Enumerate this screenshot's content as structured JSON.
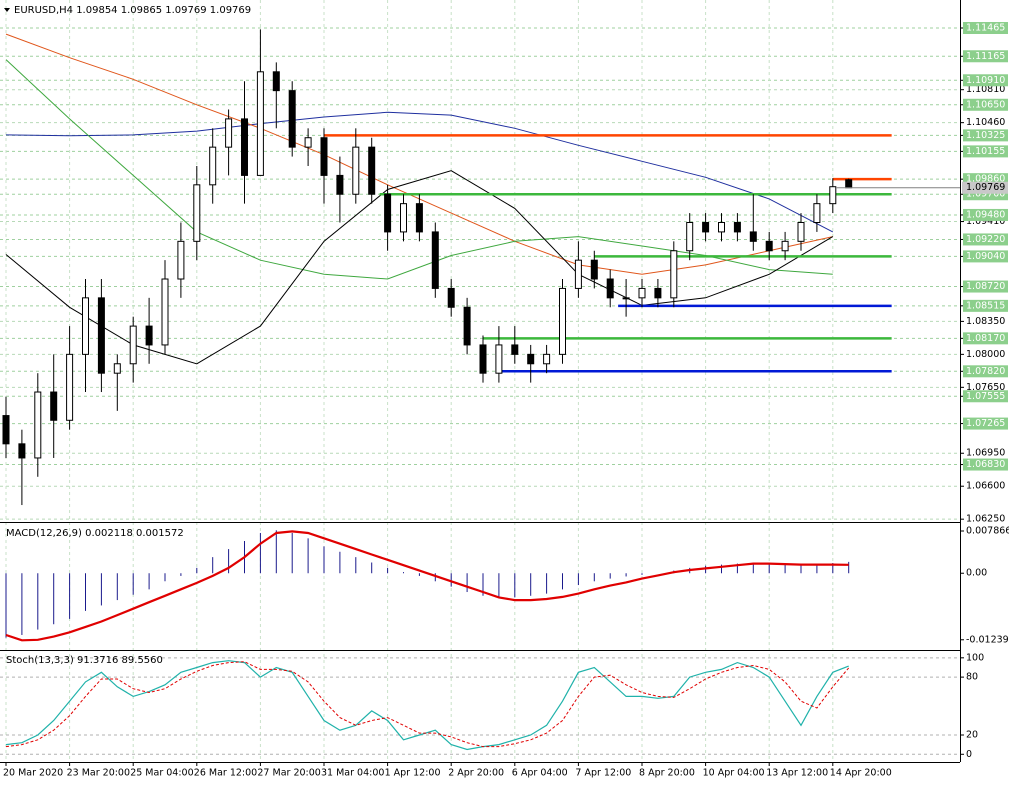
{
  "chart_data": [
    {
      "type": "candlestick",
      "title": "EURUSD,H4  1.09854 1.09865 1.09769 1.09769",
      "categories": [
        "20 Mar 2020",
        null,
        null,
        null,
        "23 Mar 20:00",
        null,
        null,
        null,
        "25 Mar 04:00",
        null,
        null,
        null,
        "26 Mar 12:00",
        null,
        null,
        null,
        "27 Mar 20:00",
        null,
        null,
        null,
        "31 Mar 04:00",
        null,
        null,
        null,
        "1 Apr 12:00",
        null,
        null,
        null,
        "2 Apr 20:00",
        null,
        null,
        null,
        "6 Apr 04:00",
        null,
        null,
        null,
        "7 Apr 12:00",
        null,
        null,
        null,
        "8 Apr 20:00",
        null,
        null,
        null,
        "10 Apr 04:00",
        null,
        null,
        null,
        "13 Apr 12:00",
        null,
        null,
        null,
        "14 Apr 20:00",
        null
      ],
      "open": [
        1.0735,
        1.0705,
        1.069,
        1.076,
        1.073,
        1.08,
        1.086,
        1.078,
        1.079,
        1.083,
        1.081,
        1.088,
        1.092,
        1.098,
        1.102,
        1.105,
        1.099,
        1.11,
        1.108,
        1.102,
        1.103,
        1.099,
        1.097,
        1.102,
        1.097,
        1.093,
        1.096,
        1.093,
        1.087,
        1.085,
        1.081,
        1.078,
        1.081,
        1.08,
        1.079,
        1.08,
        1.087,
        1.09,
        1.088,
        1.086,
        1.086,
        1.087,
        1.086,
        1.091,
        1.094,
        1.093,
        1.094,
        1.093,
        1.092,
        1.091,
        1.092,
        1.094,
        1.096,
        1.09854
      ],
      "high": [
        1.0755,
        1.072,
        1.078,
        1.08,
        1.083,
        1.088,
        1.088,
        1.08,
        1.084,
        1.086,
        1.09,
        1.094,
        1.1,
        1.104,
        1.106,
        1.109,
        1.1145,
        1.111,
        1.109,
        1.104,
        1.104,
        1.101,
        1.104,
        1.103,
        1.098,
        1.097,
        1.097,
        1.094,
        1.088,
        1.086,
        1.082,
        1.083,
        1.083,
        1.081,
        1.081,
        1.088,
        1.092,
        1.091,
        1.089,
        1.088,
        1.088,
        1.088,
        1.092,
        1.095,
        1.095,
        1.095,
        1.095,
        1.097,
        1.093,
        1.093,
        1.095,
        1.097,
        1.0987,
        1.09865
      ],
      "low": [
        1.069,
        1.064,
        1.067,
        1.069,
        1.072,
        1.076,
        1.076,
        1.074,
        1.077,
        1.079,
        1.08,
        1.086,
        1.09,
        1.096,
        1.099,
        1.096,
        1.099,
        1.104,
        1.101,
        1.1,
        1.096,
        1.094,
        1.096,
        1.096,
        1.091,
        1.092,
        1.092,
        1.086,
        1.084,
        1.08,
        1.077,
        1.077,
        1.079,
        1.077,
        1.078,
        1.079,
        1.086,
        1.087,
        1.085,
        1.084,
        1.085,
        1.085,
        1.085,
        1.09,
        1.092,
        1.092,
        1.092,
        1.091,
        1.09,
        1.09,
        1.091,
        1.093,
        1.095,
        1.09769
      ],
      "close": [
        1.0705,
        1.069,
        1.076,
        1.073,
        1.08,
        1.086,
        1.078,
        1.079,
        1.083,
        1.081,
        1.088,
        1.092,
        1.098,
        1.102,
        1.105,
        1.099,
        1.11,
        1.108,
        1.102,
        1.103,
        1.099,
        1.097,
        1.102,
        1.097,
        1.093,
        1.096,
        1.093,
        1.087,
        1.085,
        1.081,
        1.078,
        1.081,
        1.08,
        1.079,
        1.08,
        1.087,
        1.09,
        1.088,
        1.086,
        1.086,
        1.087,
        1.086,
        1.091,
        1.094,
        1.093,
        1.094,
        1.093,
        1.092,
        1.091,
        1.092,
        1.094,
        1.096,
        1.0978,
        1.09769
      ],
      "ylim": [
        1.0622,
        1.1155
      ],
      "yticks": [
        {
          "value": 1.1081,
          "label": "1.10810"
        },
        {
          "value": 1.1046,
          "label": "1.10460"
        },
        {
          "value": 1.0941,
          "label": "1.09410"
        },
        {
          "value": 1.0835,
          "label": "1.08350"
        },
        {
          "value": 1.08,
          "label": "1.08000"
        },
        {
          "value": 1.0765,
          "label": "1.07650"
        },
        {
          "value": 1.0695,
          "label": "1.06950"
        },
        {
          "value": 1.066,
          "label": "1.06600"
        },
        {
          "value": 1.0625,
          "label": "1.06250"
        }
      ],
      "level_ticks": [
        1.11465,
        1.11165,
        {
          "value": 1.1091,
          "label": "1.10910"
        },
        {
          "value": 1.1065,
          "label": "1.10650"
        },
        1.10325,
        1.10155,
        {
          "value": 1.0986,
          "label": "1.09860"
        },
        {
          "value": 1.097,
          "label": "1.09700"
        },
        {
          "value": 1.0948,
          "label": "1.09480"
        },
        {
          "value": 1.0922,
          "label": "1.09220"
        },
        {
          "value": 1.0904,
          "label": "1.09040"
        },
        {
          "value": 1.0872,
          "label": "1.08720"
        },
        1.08515,
        {
          "value": 1.0817,
          "label": "1.08170"
        },
        {
          "value": 1.0782,
          "label": "1.07820"
        },
        1.07555,
        1.07265,
        {
          "value": 1.0683,
          "label": "1.06830"
        }
      ],
      "grid": true,
      "up_color": "#ffffff",
      "down_color": "#000000",
      "series": [
        {
          "color": "#1f2f9f",
          "x": [
            0,
            4,
            8,
            12,
            16,
            20,
            24,
            28,
            32,
            36,
            40,
            44,
            48,
            52
          ],
          "values": [
            1.1033,
            1.1032,
            1.1033,
            1.1037,
            1.1045,
            1.1052,
            1.1057,
            1.1054,
            1.104,
            1.1022,
            1.1005,
            1.0988,
            1.0965,
            1.093
          ]
        },
        {
          "color": "#e0561b",
          "x": [
            0,
            4,
            8,
            12,
            16,
            20,
            24,
            28,
            32,
            36,
            40,
            44,
            48,
            52
          ],
          "values": [
            1.114,
            1.1115,
            1.1092,
            1.1065,
            1.104,
            1.1012,
            1.098,
            1.095,
            1.092,
            1.0895,
            1.0885,
            1.0895,
            1.091,
            1.0925
          ]
        },
        {
          "color": "#3fa83f",
          "x": [
            0,
            4,
            8,
            12,
            16,
            20,
            24,
            28,
            32,
            36,
            40,
            44,
            48,
            52
          ],
          "values": [
            1.1113,
            1.105,
            1.099,
            1.093,
            1.09,
            1.0885,
            1.088,
            1.0905,
            1.092,
            1.0925,
            1.0915,
            1.0905,
            1.089,
            1.0885
          ]
        },
        {
          "color": "#000000",
          "x": [
            0,
            4,
            8,
            12,
            16,
            20,
            24,
            28,
            32,
            36,
            40,
            44,
            48,
            52
          ],
          "values": [
            1.0906,
            1.085,
            1.081,
            1.079,
            1.083,
            1.092,
            1.0975,
            1.0995,
            1.0955,
            1.0885,
            1.0852,
            1.086,
            1.0885,
            1.0925
          ]
        }
      ],
      "levels": [
        {
          "value": 1.10325,
          "from": 20,
          "to": 55.7,
          "color": "#ff4500"
        },
        {
          "value": 1.0986,
          "from": 52,
          "to": 55.7,
          "color": "#ff4500"
        },
        {
          "value": 1.097,
          "from": 23.5,
          "to": 55.7,
          "color": "#3cb83c"
        },
        {
          "value": 1.0904,
          "from": 37,
          "to": 55.7,
          "color": "#3cb83c"
        },
        {
          "value": 1.08515,
          "from": 38.5,
          "to": 55.7,
          "color": "#0019d6"
        },
        {
          "value": 1.0817,
          "from": 30,
          "to": 55.7,
          "color": "#3cb83c"
        },
        {
          "value": 1.0782,
          "from": 31,
          "to": 55.7,
          "color": "#0019d6"
        }
      ]
    },
    {
      "type": "macd",
      "title": "MACD(12,26,9) 0.002118 0.001572",
      "ylim": [
        -0.0143,
        0.0088
      ],
      "yticks": [
        0.007866,
        {
          "value": 0,
          "label": "0.00"
        },
        -0.012394
      ],
      "series": [
        {
          "color": "#1a1a8c",
          "values": [
            -0.012,
            -0.0115,
            -0.0105,
            -0.0095,
            -0.0085,
            -0.007,
            -0.006,
            -0.005,
            -0.004,
            -0.003,
            -0.0015,
            -0.0005,
            0.001,
            0.003,
            0.0045,
            0.006,
            0.0075,
            0.008,
            0.0075,
            0.0065,
            0.005,
            0.004,
            0.003,
            0.002,
            0.001,
            0.0002,
            -0.0005,
            -0.0015,
            -0.0025,
            -0.0035,
            -0.0042,
            -0.0045,
            -0.0045,
            -0.0042,
            -0.0038,
            -0.003,
            -0.0022,
            -0.0015,
            -0.001,
            -0.0006,
            -0.0003,
            0.0,
            0.0005,
            0.001,
            0.0014,
            0.0016,
            0.0018,
            0.002,
            0.0019,
            0.0018,
            0.0017,
            0.0018,
            0.0019,
            0.002118
          ]
        },
        {
          "color": "#e00000",
          "values": [
            -0.0115,
            -0.0125,
            -0.0124,
            -0.0118,
            -0.011,
            -0.01,
            -0.009,
            -0.0078,
            -0.0066,
            -0.0054,
            -0.0042,
            -0.003,
            -0.0018,
            -0.0005,
            0.001,
            0.003,
            0.0055,
            0.0075,
            0.0078,
            0.0075,
            0.0065,
            0.0055,
            0.0045,
            0.0035,
            0.0025,
            0.0015,
            0.0005,
            -0.0005,
            -0.0015,
            -0.0025,
            -0.0035,
            -0.0045,
            -0.005,
            -0.005,
            -0.0048,
            -0.0044,
            -0.0038,
            -0.003,
            -0.0023,
            -0.0017,
            -0.001,
            -0.0004,
            0.0002,
            0.0006,
            0.0009,
            0.0012,
            0.0015,
            0.0018,
            0.0018,
            0.0017,
            0.0016,
            0.0016,
            0.0016,
            0.001572
          ]
        }
      ]
    },
    {
      "type": "stochastic",
      "title": "Stoch(13,3,3) 91.3716 89.5560",
      "ylim": [
        -8,
        105
      ],
      "yticks": [
        100,
        80,
        20,
        0
      ],
      "series": [
        {
          "color": "#20b2aa",
          "values": [
            10,
            12,
            20,
            35,
            55,
            75,
            85,
            70,
            60,
            65,
            72,
            85,
            90,
            95,
            97,
            95,
            80,
            90,
            85,
            60,
            35,
            25,
            30,
            45,
            35,
            15,
            20,
            25,
            10,
            5,
            8,
            10,
            15,
            20,
            30,
            55,
            85,
            90,
            75,
            60,
            60,
            58,
            60,
            80,
            85,
            88,
            95,
            90,
            80,
            55,
            30,
            60,
            85,
            91.3716
          ]
        },
        {
          "color": "#e00000",
          "values": [
            8,
            10,
            15,
            25,
            40,
            60,
            78,
            78,
            68,
            64,
            68,
            78,
            86,
            92,
            95,
            96,
            88,
            88,
            86,
            75,
            55,
            38,
            30,
            35,
            38,
            30,
            22,
            22,
            18,
            12,
            8,
            8,
            11,
            15,
            22,
            35,
            60,
            80,
            82,
            72,
            64,
            60,
            59,
            68,
            78,
            85,
            90,
            92,
            88,
            75,
            55,
            48,
            70,
            89.556
          ]
        }
      ]
    }
  ]
}
